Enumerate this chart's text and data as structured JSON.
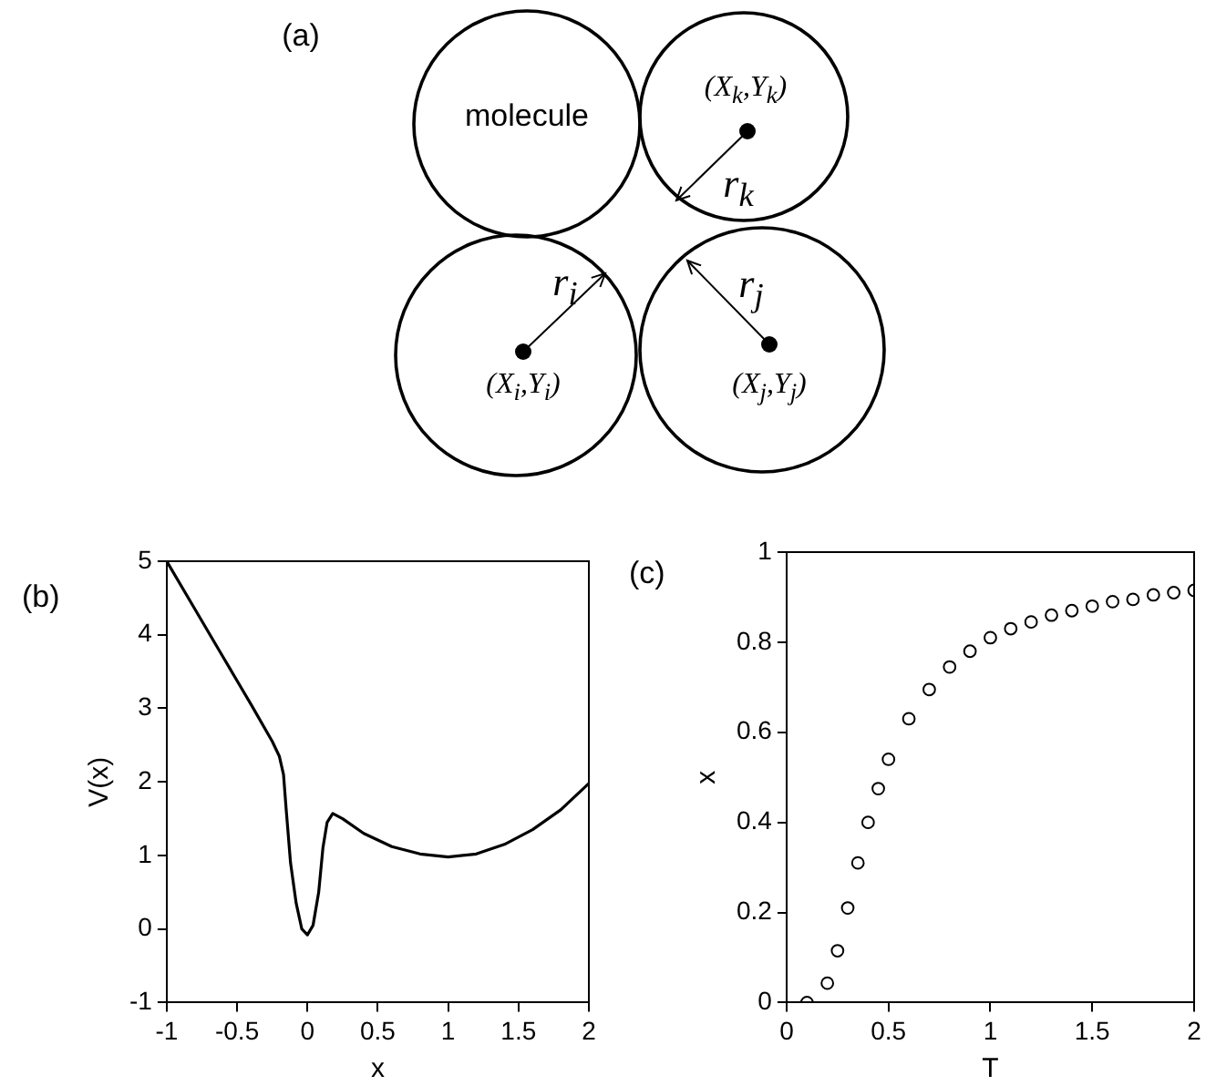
{
  "chart_data": [
    {
      "type": "other",
      "title": "(a)",
      "annotations": [
        "molecule",
        "(X$_{k}$,Y$_{k}$)",
        "r$_{k}$",
        "r$_{i}$",
        "r$_{j}$",
        "(X$_{i}$,Y$_{i}$)",
        "(X$_{j}$,Y$_{j}$)"
      ]
    },
    {
      "type": "line",
      "title": "(b)",
      "xlabel": "x",
      "ylabel": "V(x)",
      "xlim": [
        -1,
        2
      ],
      "xticks": [
        -1,
        -0.5,
        0,
        0.5,
        1,
        1.5,
        2
      ],
      "ylim": [
        -1,
        5
      ],
      "yticks": [
        -1,
        0,
        1,
        2,
        3,
        4,
        5
      ],
      "grid": false,
      "marker": "none",
      "line_style": "solid",
      "series": [
        {
          "color": "#000000",
          "x": [
            -1,
            -0.8,
            -0.6,
            -0.4,
            -0.25,
            -0.2,
            -0.17,
            -0.15,
            -0.12,
            -0.08,
            -0.04,
            0,
            0.04,
            0.08,
            0.11,
            0.14,
            0.18,
            0.25,
            0.4,
            0.6,
            0.8,
            1,
            1.2,
            1.4,
            1.6,
            1.8,
            2
          ],
          "values": [
            5,
            4.35,
            3.7,
            3.05,
            2.55,
            2.35,
            2.1,
            1.6,
            0.9,
            0.35,
            0,
            -0.08,
            0.05,
            0.5,
            1.1,
            1.45,
            1.57,
            1.5,
            1.3,
            1.12,
            1.02,
            0.98,
            1.02,
            1.15,
            1.35,
            1.62,
            1.98
          ]
        }
      ]
    },
    {
      "type": "scatter",
      "title": "(c)",
      "xlabel": "T",
      "ylabel": "x",
      "xlim": [
        0,
        2
      ],
      "xticks": [
        0,
        0.5,
        1,
        1.5,
        2
      ],
      "ylim": [
        0,
        1
      ],
      "yticks": [
        0,
        0.2,
        0.4,
        0.6,
        0.8,
        1
      ],
      "grid": false,
      "marker": "circle",
      "series": [
        {
          "color": "#000000",
          "x": [
            0.1,
            0.2,
            0.25,
            0.3,
            0.35,
            0.4,
            0.45,
            0.5,
            0.6,
            0.7,
            0.8,
            0.9,
            1,
            1.1,
            1.2,
            1.3,
            1.4,
            1.5,
            1.6,
            1.7,
            1.8,
            1.9,
            2
          ],
          "values": [
            0,
            0.043,
            0.115,
            0.21,
            0.31,
            0.4,
            0.475,
            0.54,
            0.63,
            0.695,
            0.745,
            0.78,
            0.81,
            0.83,
            0.845,
            0.86,
            0.87,
            0.88,
            0.89,
            0.895,
            0.905,
            0.91,
            0.915
          ]
        }
      ]
    }
  ]
}
